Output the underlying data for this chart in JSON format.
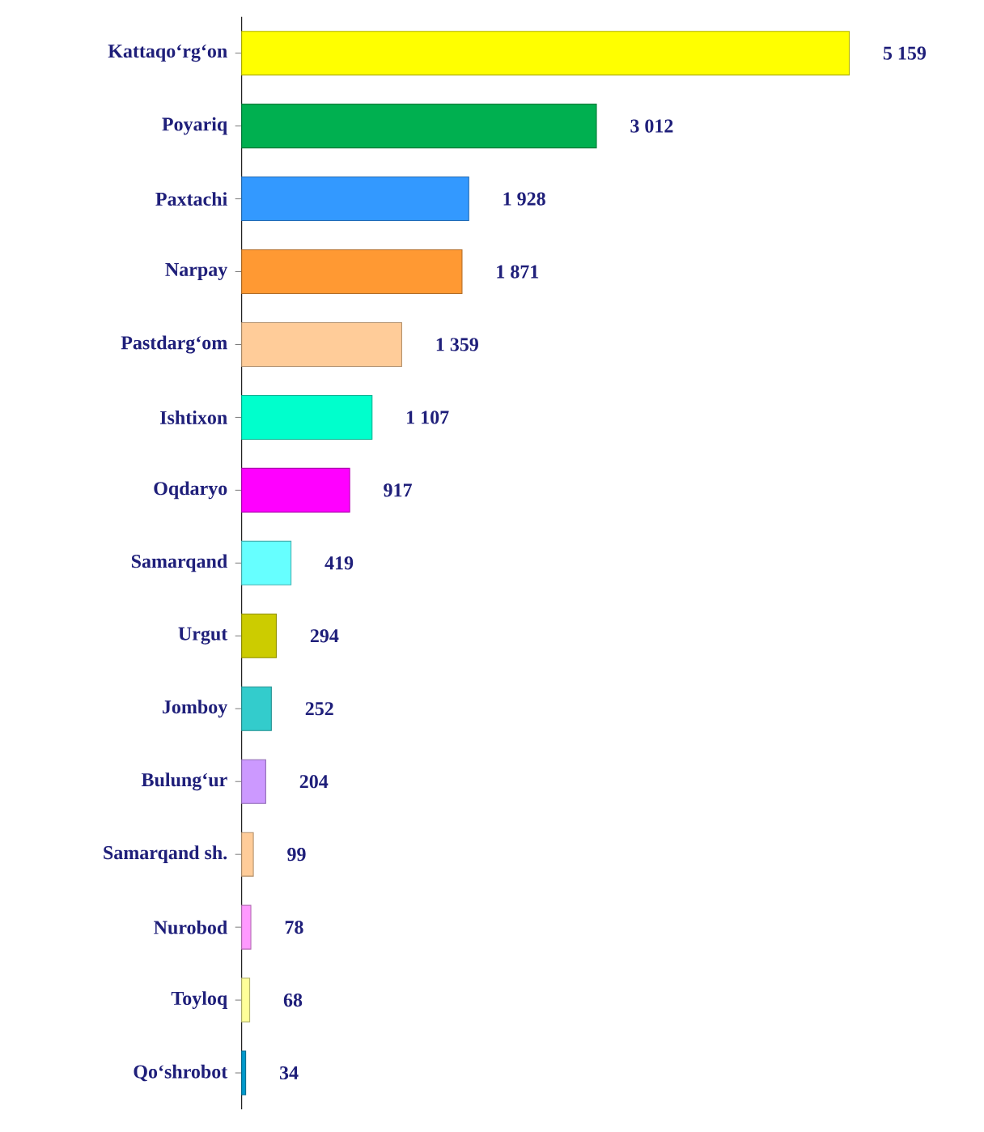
{
  "chart_data": {
    "type": "bar",
    "orientation": "horizontal",
    "categories": [
      "Kattaqo‘rg‘on",
      "Poyariq",
      "Paxtachi",
      "Narpay",
      "Pastdarg‘om",
      "Ishtixon",
      "Oqdaryo",
      "Samarqand",
      "Urgut",
      "Jomboy",
      "Bulung‘ur",
      "Samarqand sh.",
      "Nurobod",
      "Toyloq",
      "Qo‘shrobot"
    ],
    "values": [
      5159,
      3012,
      1928,
      1871,
      1359,
      1107,
      917,
      419,
      294,
      252,
      204,
      99,
      78,
      68,
      34
    ],
    "value_labels": [
      "5 159",
      "3 012",
      "1 928",
      "1 871",
      "1 359",
      "1 107",
      "917",
      "419",
      "294",
      "252",
      "204",
      "99",
      "78",
      "68",
      "34"
    ],
    "colors": [
      "#ffff00",
      "#00b050",
      "#3399ff",
      "#ff9933",
      "#ffcc99",
      "#00ffcc",
      "#ff00ff",
      "#66ffff",
      "#cccc00",
      "#33cccc",
      "#cc99ff",
      "#ffcc99",
      "#ff99ff",
      "#ffff99",
      "#0099cc"
    ]
  }
}
